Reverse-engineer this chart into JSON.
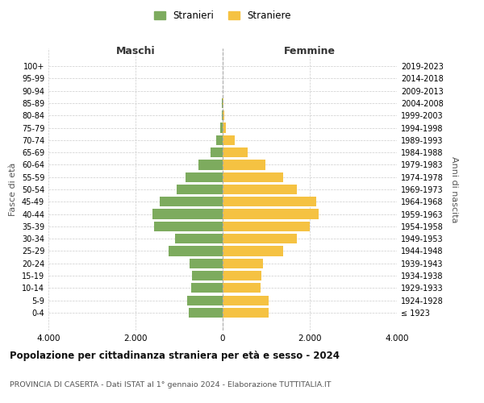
{
  "age_groups": [
    "100+",
    "95-99",
    "90-94",
    "85-89",
    "80-84",
    "75-79",
    "70-74",
    "65-69",
    "60-64",
    "55-59",
    "50-54",
    "45-49",
    "40-44",
    "35-39",
    "30-34",
    "25-29",
    "20-24",
    "15-19",
    "10-14",
    "5-9",
    "0-4"
  ],
  "birth_years": [
    "≤ 1923",
    "1924-1928",
    "1929-1933",
    "1934-1938",
    "1939-1943",
    "1944-1948",
    "1949-1953",
    "1954-1958",
    "1959-1963",
    "1964-1968",
    "1969-1973",
    "1974-1978",
    "1979-1983",
    "1984-1988",
    "1989-1993",
    "1994-1998",
    "1999-2003",
    "2004-2008",
    "2009-2013",
    "2014-2018",
    "2019-2023"
  ],
  "maschi": [
    5,
    5,
    5,
    10,
    20,
    50,
    150,
    280,
    560,
    860,
    1050,
    1450,
    1620,
    1570,
    1100,
    1250,
    760,
    700,
    730,
    820,
    780
  ],
  "femmine": [
    5,
    5,
    5,
    10,
    30,
    80,
    280,
    580,
    980,
    1380,
    1700,
    2150,
    2200,
    2000,
    1700,
    1380,
    930,
    890,
    870,
    1050,
    1050
  ],
  "color_maschi": "#7dab5e",
  "color_femmine": "#f5c242",
  "title": "Popolazione per cittadinanza straniera per età e sesso - 2024",
  "subtitle": "PROVINCIA DI CASERTA - Dati ISTAT al 1° gennaio 2024 - Elaborazione TUTTITALIA.IT",
  "xlabel_left": "Maschi",
  "xlabel_right": "Femmine",
  "ylabel_left": "Fasce di età",
  "ylabel_right": "Anni di nascita",
  "xlim": 4000,
  "legend_stranieri": "Stranieri",
  "legend_straniere": "Straniere",
  "background_color": "#ffffff",
  "grid_color": "#cccccc",
  "bar_height": 0.8
}
